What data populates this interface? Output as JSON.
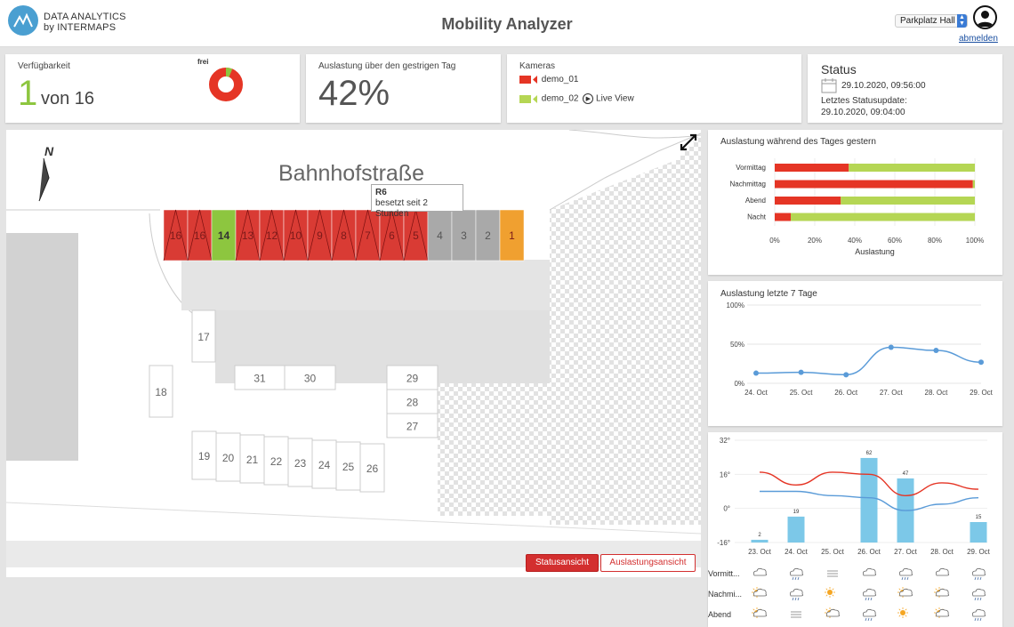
{
  "header": {
    "logo_line1": "DATA ANALYTICS",
    "logo_line2": "by INTERMAPS",
    "title": "Mobility Analyzer",
    "location_select": "Parkplatz Hall",
    "logout": "abmelden"
  },
  "availability": {
    "label": "Verfügbarkeit",
    "free_count": "1",
    "of_total": "von 16",
    "donut_label": "frei",
    "free_fraction": 0.0625
  },
  "utilization_yesterday": {
    "label": "Auslastung über den gestrigen Tag",
    "value": "42%"
  },
  "cameras": {
    "label": "Kameras",
    "items": [
      {
        "name": "demo_01",
        "status_color": "#e53525"
      },
      {
        "name": "demo_02",
        "status_color": "#8dc63f"
      }
    ],
    "live_view": "Live View"
  },
  "status": {
    "title": "Status",
    "datetime": "29.10.2020, 09:56:00",
    "last_update_label": "Letztes Statusupdate:",
    "last_update": "29.10.2020, 09:04:00"
  },
  "map": {
    "street": "Bahnhofstraße",
    "north": "N",
    "tooltip_id": "R6",
    "tooltip_text": "besetzt seit 2 Stunden",
    "spots_row": [
      {
        "label": "16",
        "state": "occupied"
      },
      {
        "label": "16",
        "state": "occupied"
      },
      {
        "label": "14",
        "state": "free"
      },
      {
        "label": "13",
        "state": "occupied"
      },
      {
        "label": "12",
        "state": "occupied"
      },
      {
        "label": "10",
        "state": "occupied"
      },
      {
        "label": "9",
        "state": "occupied"
      },
      {
        "label": "8",
        "state": "occupied"
      },
      {
        "label": "7",
        "state": "occupied"
      },
      {
        "label": "6",
        "state": "occupied"
      },
      {
        "label": "5",
        "state": "occupied"
      },
      {
        "label": "4",
        "state": "unknown"
      },
      {
        "label": "3",
        "state": "unknown"
      },
      {
        "label": "2",
        "state": "unknown"
      },
      {
        "label": "1",
        "state": "warning"
      }
    ],
    "spots_other": [
      "17",
      "18",
      "31",
      "30",
      "29",
      "28",
      "27",
      "19",
      "20",
      "21",
      "22",
      "23",
      "24",
      "25",
      "26"
    ],
    "buttons": {
      "status": "Statusansicht",
      "utilization": "Auslastungsansicht"
    }
  },
  "colors": {
    "occupied": "#d93b34",
    "free": "#8dc63f",
    "unknown": "#a9a9a9",
    "warning": "#f0a030",
    "blue": "#5a9bd8",
    "bar_blue": "#7cc8e8"
  },
  "chart_data": [
    {
      "type": "bar",
      "title": "Auslastung während des Tages gestern",
      "orientation": "horizontal",
      "stacked": true,
      "categories": [
        "Vormittag",
        "Nachmittag",
        "Abend",
        "Nacht"
      ],
      "series": [
        {
          "values": [
            37,
            99,
            33,
            8
          ],
          "color": "#e53525"
        },
        {
          "values": [
            63,
            1,
            67,
            92
          ],
          "color": "#b5d654"
        }
      ],
      "xlabel": "Auslastung",
      "xticks": [
        "0%",
        "20%",
        "40%",
        "60%",
        "80%",
        "100%"
      ],
      "xlim": [
        0,
        100
      ]
    },
    {
      "type": "line",
      "title": "Auslastung letzte 7 Tage",
      "x": [
        "24. Oct",
        "25. Oct",
        "26. Oct",
        "27. Oct",
        "28. Oct",
        "29. Oct"
      ],
      "values": [
        13,
        14,
        11,
        46,
        42,
        27
      ],
      "yticks": [
        "0%",
        "50%",
        "100%"
      ],
      "ylim": [
        0,
        100
      ]
    },
    {
      "type": "bar",
      "x": [
        "23. Oct",
        "24. Oct",
        "25. Oct",
        "26. Oct",
        "27. Oct",
        "28. Oct",
        "29. Oct"
      ],
      "bars": [
        2,
        19,
        null,
        62,
        47,
        null,
        15
      ],
      "bar_labels": [
        "2",
        "19",
        "",
        "62",
        "47",
        "",
        "15"
      ],
      "series": [
        {
          "values": [
            17,
            11,
            17,
            16,
            6,
            12,
            9
          ],
          "color": "#e53525"
        },
        {
          "values": [
            8,
            8,
            6,
            5,
            -1,
            2,
            5
          ],
          "color": "#5a9bd8"
        }
      ],
      "yticks": [
        "32°",
        "16°",
        "0°",
        "-16°"
      ],
      "ylim": [
        -16,
        32
      ]
    }
  ],
  "weather": {
    "rows": [
      "Vormitt...",
      "Nachmi...",
      "Abend"
    ],
    "icons": [
      [
        "cloud-icon",
        "cloud-rain-icon",
        "fog-icon",
        "cloud-icon",
        "cloud-rain-icon",
        "cloud-icon",
        "cloud-rain-icon"
      ],
      [
        "sun-cloud-icon",
        "cloud-rain-icon",
        "sun-icon",
        "cloud-rain-icon",
        "sun-cloud-icon",
        "sun-cloud-icon",
        "cloud-rain-icon"
      ],
      [
        "sun-cloud-icon",
        "fog-icon",
        "sun-cloud-icon",
        "cloud-rain-icon",
        "sun-icon",
        "sun-cloud-icon",
        "cloud-rain-icon"
      ]
    ]
  }
}
